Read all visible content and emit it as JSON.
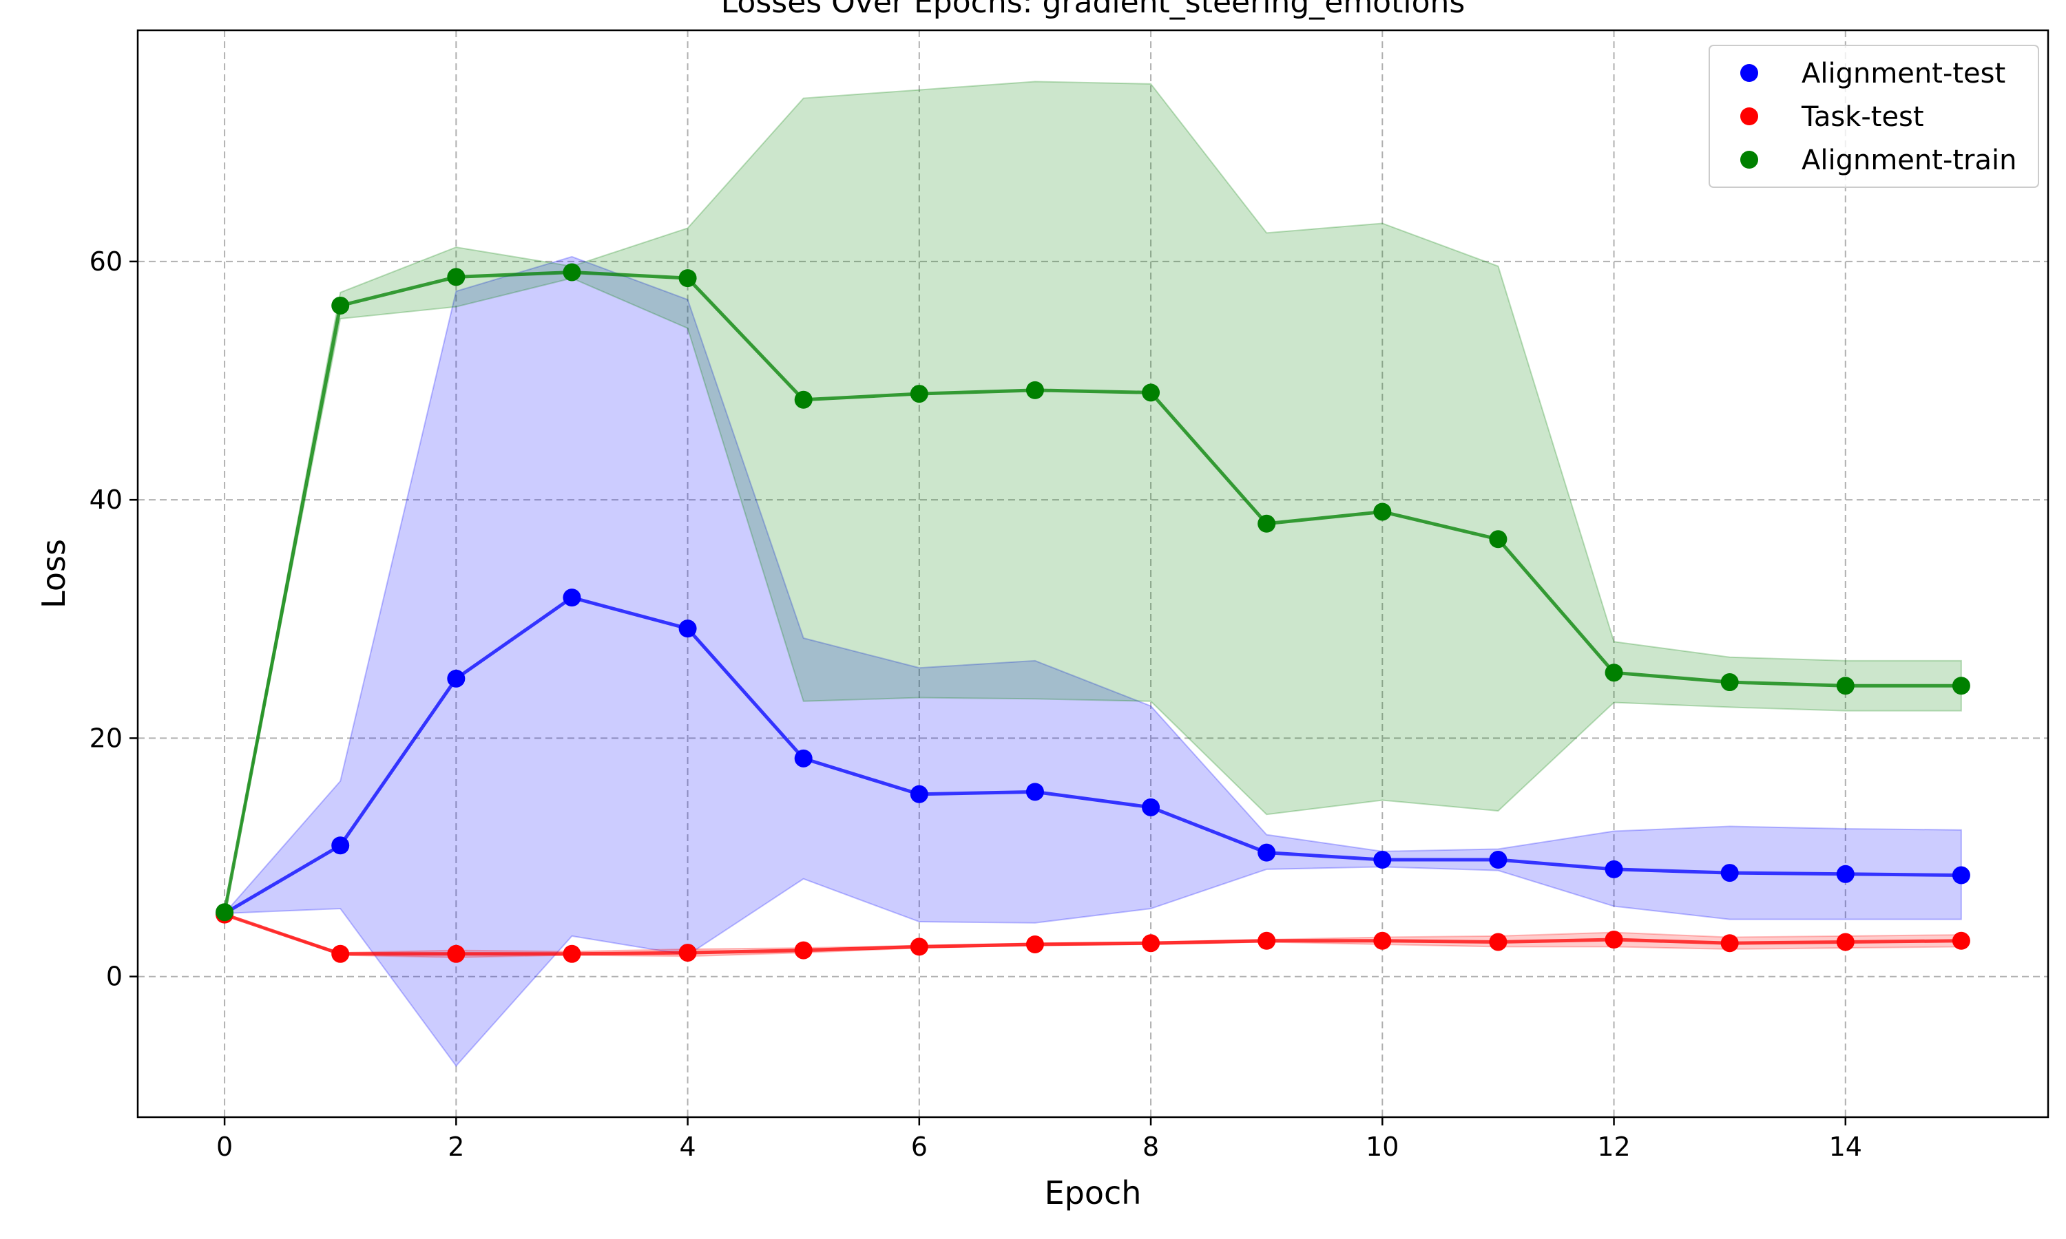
{
  "chart_data": {
    "type": "line",
    "title": "Losses Over Epochs: gradient_steering_emotions",
    "xlabel": "Epoch",
    "ylabel": "Loss",
    "xlim": [
      -0.75,
      15.75
    ],
    "ylim": [
      -11.8,
      79.4
    ],
    "xticks": [
      0,
      2,
      4,
      6,
      8,
      10,
      12,
      14
    ],
    "yticks": [
      0,
      20,
      40,
      60
    ],
    "grid": true,
    "legend_position": "top-right",
    "x": [
      0,
      1,
      2,
      3,
      4,
      5,
      6,
      7,
      8,
      9,
      10,
      11,
      12,
      13,
      14,
      15
    ],
    "series": [
      {
        "name": "Alignment-test",
        "color": "#0000ff",
        "values": [
          5.3,
          11.0,
          25.0,
          31.8,
          29.2,
          18.3,
          15.3,
          15.5,
          14.2,
          10.4,
          9.8,
          9.8,
          9.0,
          8.7,
          8.6,
          8.5
        ],
        "band_upper": [
          5.3,
          16.4,
          57.5,
          60.4,
          56.8,
          28.4,
          25.9,
          26.5,
          22.7,
          11.9,
          10.5,
          10.7,
          12.2,
          12.6,
          12.4,
          12.3
        ],
        "band_lower": [
          5.3,
          5.7,
          -7.5,
          3.4,
          1.8,
          8.2,
          4.6,
          4.5,
          5.7,
          9.0,
          9.2,
          8.9,
          5.9,
          4.8,
          4.8,
          4.8
        ]
      },
      {
        "name": "Task-test",
        "color": "#ff0000",
        "values": [
          5.2,
          1.9,
          1.9,
          1.9,
          2.0,
          2.2,
          2.5,
          2.7,
          2.8,
          3.0,
          3.0,
          2.9,
          3.1,
          2.8,
          2.9,
          3.0
        ],
        "band_upper": [
          5.2,
          2.0,
          2.2,
          2.1,
          2.3,
          2.4,
          2.6,
          2.8,
          2.9,
          3.1,
          3.3,
          3.4,
          3.7,
          3.3,
          3.4,
          3.5
        ],
        "band_lower": [
          5.2,
          1.8,
          1.6,
          1.8,
          1.7,
          2.0,
          2.4,
          2.6,
          2.7,
          2.9,
          2.7,
          2.5,
          2.5,
          2.3,
          2.4,
          2.5
        ]
      },
      {
        "name": "Alignment-train",
        "color": "#008000",
        "values": [
          5.4,
          56.3,
          58.7,
          59.1,
          58.6,
          48.4,
          48.9,
          49.2,
          49.0,
          38.0,
          39.0,
          36.7,
          25.5,
          24.7,
          24.4,
          24.4
        ],
        "band_upper": [
          5.4,
          57.4,
          61.2,
          59.6,
          62.8,
          73.7,
          74.4,
          75.1,
          74.9,
          62.4,
          63.2,
          59.6,
          28.1,
          26.8,
          26.5,
          26.5
        ],
        "band_lower": [
          5.4,
          55.2,
          56.2,
          58.6,
          54.4,
          23.1,
          23.4,
          23.3,
          23.1,
          13.6,
          14.8,
          13.9,
          23.0,
          22.6,
          22.3,
          22.3
        ]
      }
    ]
  }
}
